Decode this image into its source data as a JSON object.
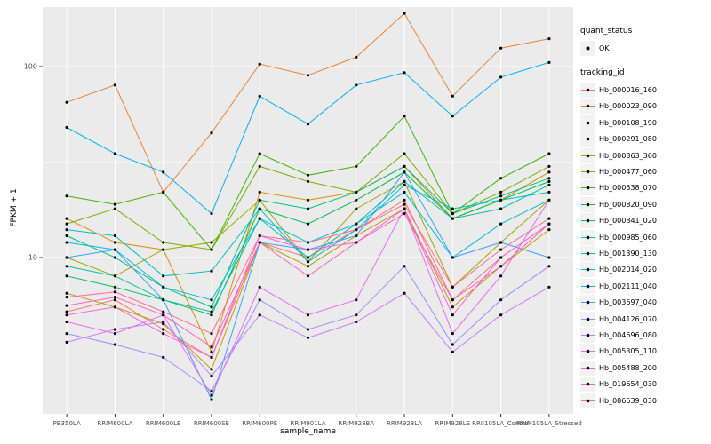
{
  "chart_data": {
    "type": "line",
    "title": "",
    "xlabel": "sample_name",
    "ylabel": "FPKM + 1",
    "y_scale": "log10",
    "ylim": [
      1.55,
      205
    ],
    "y_ticks": [
      {
        "value": 100,
        "label": "100"
      },
      {
        "value": 10,
        "label": "10"
      }
    ],
    "y_minor": [
      3.162,
      31.623
    ],
    "grid": "on",
    "legend_position": "right",
    "style": {
      "panel_bg": "#EBEBEB",
      "grid_color": "#FFFFFF",
      "tick_color": "#333333",
      "axis_text_color": "#4D4D4D",
      "point_color": "#000000",
      "legend_key_bg": "#F2F2F2"
    },
    "legend_quant": {
      "title": "quant_status",
      "items": [
        {
          "label": "OK"
        }
      ]
    },
    "legend_tracking": {
      "title": "tracking_id"
    },
    "categories": [
      "PB350LA",
      "RRIM600LA",
      "RRIM600LE",
      "RRIM600SE",
      "RRIM600PE",
      "RRIM901LA",
      "RRIM928BA",
      "RRIM928LA",
      "RRIM928LE",
      "RRII105LA_Control",
      "RRIM105LA_Stressed"
    ],
    "series": [
      {
        "name": "Hb_000016_160",
        "color": "#F8766D",
        "values": [
          5.2,
          6.0,
          4.2,
          3.0,
          12,
          10,
          14,
          20,
          6,
          10,
          15
        ]
      },
      {
        "name": "Hb_000023_090",
        "color": "#EA8331",
        "values": [
          65,
          80,
          22,
          45,
          103,
          90,
          112,
          190,
          70,
          125,
          140
        ]
      },
      {
        "name": "Hb_000108_190",
        "color": "#D89000",
        "values": [
          16,
          12,
          11,
          3.2,
          22,
          20,
          22,
          30,
          16,
          20,
          28
        ]
      },
      {
        "name": "Hb_000291_080",
        "color": "#C09B00",
        "values": [
          6.5,
          5.5,
          4.5,
          2.6,
          12,
          9,
          13,
          18,
          5.5,
          9,
          14
        ]
      },
      {
        "name": "Hb_000363_360",
        "color": "#A3A500",
        "values": [
          10,
          8,
          11,
          12,
          20,
          9.5,
          18,
          25,
          7,
          12,
          20
        ]
      },
      {
        "name": "Hb_000477_060",
        "color": "#7CAE00",
        "values": [
          15,
          18,
          12,
          11,
          30,
          25,
          22,
          35,
          17,
          22,
          30
        ]
      },
      {
        "name": "Hb_000538_070",
        "color": "#39B600",
        "values": [
          21,
          19,
          22,
          11,
          35,
          27,
          30,
          55,
          17,
          26,
          35
        ]
      },
      {
        "name": "Hb_000820_090",
        "color": "#00BB4E",
        "values": [
          8,
          7,
          6,
          5,
          18,
          15,
          20,
          28,
          16,
          20,
          25
        ]
      },
      {
        "name": "Hb_000841_020",
        "color": "#00BF7D",
        "values": [
          13,
          10,
          7,
          5.5,
          20,
          18,
          22,
          30,
          17,
          21,
          26
        ]
      },
      {
        "name": "Hb_000985_060",
        "color": "#00C1A3",
        "values": [
          9,
          8,
          6,
          5.2,
          16,
          10,
          15,
          25,
          16,
          18,
          24
        ]
      },
      {
        "name": "Hb_001390_130",
        "color": "#00BFC4",
        "values": [
          14,
          13,
          8,
          8.5,
          18,
          9.5,
          14,
          24,
          18,
          20,
          22
        ]
      },
      {
        "name": "Hb_002014_020",
        "color": "#00BBDA",
        "values": [
          12,
          11,
          7,
          6,
          16,
          12,
          15,
          22,
          10,
          15,
          20
        ]
      },
      {
        "name": "Hb_002111_040",
        "color": "#00B0F6",
        "values": [
          48,
          35,
          28,
          17,
          70,
          50,
          80,
          93,
          55,
          88,
          105
        ]
      },
      {
        "name": "Hb_003697_040",
        "color": "#35A2FF",
        "values": [
          10,
          11,
          6,
          1.8,
          12,
          11,
          13,
          28,
          10,
          12,
          10
        ]
      },
      {
        "name": "Hb_004126_070",
        "color": "#9590FF",
        "values": [
          4,
          3.5,
          3,
          2.0,
          6,
          4.2,
          5,
          9,
          3.5,
          6,
          9
        ]
      },
      {
        "name": "Hb_004696_080",
        "color": "#C77CFF",
        "values": [
          3.6,
          4.2,
          4.6,
          2.4,
          5,
          3.8,
          4.6,
          6.5,
          3.2,
          5,
          7
        ]
      },
      {
        "name": "Hb_005305_110",
        "color": "#E76BF3",
        "values": [
          4.6,
          4.0,
          5.0,
          1.9,
          7,
          5,
          6,
          18,
          4,
          8,
          20
        ]
      },
      {
        "name": "Hb_005488_200",
        "color": "#FA62DB",
        "values": [
          5,
          5.5,
          4,
          3,
          13,
          11,
          12,
          18,
          5,
          10,
          15
        ]
      },
      {
        "name": "Hb_019654_030",
        "color": "#FF62BC",
        "values": [
          5.6,
          6.2,
          5,
          3.4,
          12,
          8,
          12,
          17,
          6,
          9,
          15
        ]
      },
      {
        "name": "Hb_086639_030",
        "color": "#FF6A98",
        "values": [
          6.2,
          6.6,
          5.2,
          4,
          13,
          12,
          14,
          19,
          7,
          11,
          16
        ]
      }
    ]
  }
}
